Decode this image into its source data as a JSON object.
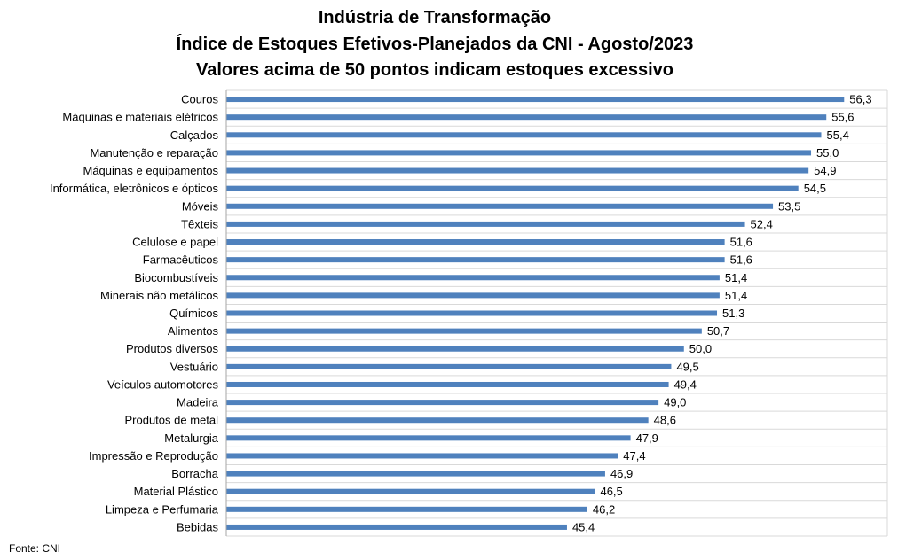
{
  "chart_data": {
    "type": "bar",
    "orientation": "horizontal",
    "title": "Indústria de Transformação",
    "subtitle": "Índice de Estoques Efetivos-Planejados da CNI - Agosto/2023",
    "subtitle2": "Valores acima de 50 pontos indicam estoques excessivo",
    "categories": [
      "Couros",
      "Máquinas e materiais elétricos",
      "Calçados",
      "Manutenção e reparação",
      "Máquinas e equipamentos",
      "Informática, eletrônicos e ópticos",
      "Móveis",
      "Têxteis",
      "Celulose e papel",
      "Farmacêuticos",
      "Biocombustíveis",
      "Minerais não metálicos",
      "Químicos",
      "Alimentos",
      "Produtos diversos",
      "Vestuário",
      "Veículos automotores",
      "Madeira",
      "Produtos de metal",
      "Metalurgia",
      "Impressão e Reprodução",
      "Borracha",
      "Material Plástico",
      "Limpeza e Perfumaria",
      "Bebidas"
    ],
    "values": [
      56.3,
      55.6,
      55.4,
      55.0,
      54.9,
      54.5,
      53.5,
      52.4,
      51.6,
      51.6,
      51.4,
      51.4,
      51.3,
      50.7,
      50.0,
      49.5,
      49.4,
      49.0,
      48.6,
      47.9,
      47.4,
      46.9,
      46.5,
      46.2,
      45.4
    ],
    "value_labels": [
      "56,3",
      "55,6",
      "55,4",
      "55,0",
      "54,9",
      "54,5",
      "53,5",
      "52,4",
      "51,6",
      "51,6",
      "51,4",
      "51,4",
      "51,3",
      "50,7",
      "50,0",
      "49,5",
      "49,4",
      "49,0",
      "48,6",
      "47,9",
      "47,4",
      "46,9",
      "46,5",
      "46,2",
      "45,4"
    ],
    "xlim": [
      32,
      58
    ],
    "grid": true,
    "bar_color": "#4f81bd"
  },
  "source": "Fonte: CNI"
}
